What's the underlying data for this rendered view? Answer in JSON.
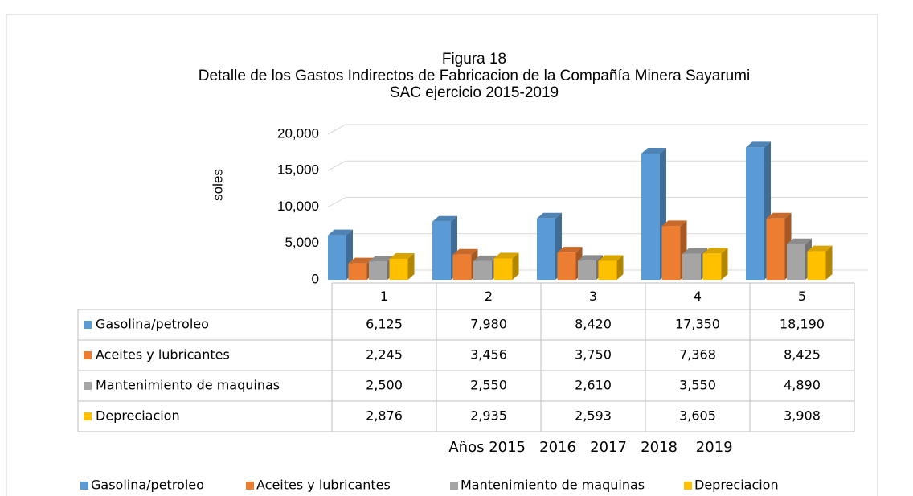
{
  "chart_data": {
    "type": "bar",
    "title": [
      "Figura 18",
      "Detalle de los Gastos Indirectos de Fabricacion de la Compañía Minera Sayarumi",
      "SAC ejercicio 2015-2019"
    ],
    "ylabel": "soles",
    "xlabel": "Años 2015   2016   2017   2018    2019",
    "categories": [
      "1",
      "2",
      "3",
      "4",
      "5"
    ],
    "ylim": [
      0,
      20000
    ],
    "yticks": [
      0,
      {
        "value": 5000,
        "label": "5,000"
      },
      {
        "value": 10000,
        "label": "10,000"
      },
      {
        "value": 15000,
        "label": "15,000"
      },
      {
        "value": 20000,
        "label": "20,000"
      }
    ],
    "grid": true,
    "series": [
      {
        "name": "Gasolina/petroleo",
        "color": "#5b9bd5",
        "values": [
          6125,
          7980,
          8420,
          17350,
          18190
        ],
        "value_labels": [
          "6,125",
          "7,980",
          "8,420",
          "17,350",
          "18,190"
        ]
      },
      {
        "name": "Aceites y lubricantes",
        "color": "#ed7d31",
        "values": [
          2245,
          3456,
          3750,
          7368,
          8425
        ],
        "value_labels": [
          "2,245",
          "3,456",
          "3,750",
          "7,368",
          "8,425"
        ]
      },
      {
        "name": "Mantenimiento de maquinas",
        "color": "#a5a5a5",
        "values": [
          2500,
          2550,
          2610,
          3550,
          4890
        ],
        "value_labels": [
          "2,500",
          "2,550",
          "2,610",
          "3,550",
          "4,890"
        ]
      },
      {
        "name": "Depreciacion",
        "color": "#ffc000",
        "values": [
          2876,
          2935,
          2593,
          3605,
          3908
        ],
        "value_labels": [
          "2,876",
          "2,935",
          "2,593",
          "3,605",
          "3,908"
        ]
      }
    ]
  }
}
